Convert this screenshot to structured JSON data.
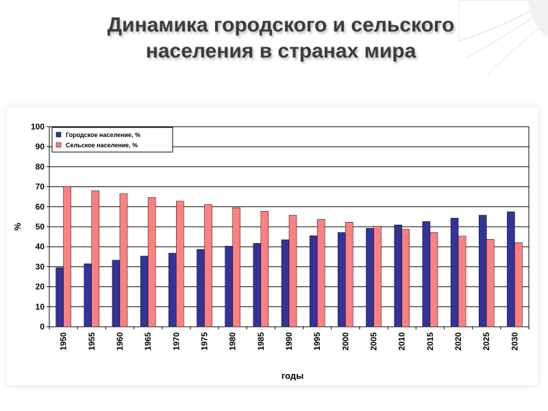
{
  "slide": {
    "title_line1": "Динамика городского и сельского",
    "title_line2": "населения в странах мира"
  },
  "chart_data": {
    "type": "bar",
    "xlabel": "годы",
    "ylabel": "%",
    "ylim": [
      0,
      100
    ],
    "yticks": [
      0,
      10,
      20,
      30,
      40,
      50,
      60,
      70,
      80,
      90,
      100
    ],
    "grid": true,
    "legend_position": "top-left",
    "categories": [
      "1950",
      "1955",
      "1960",
      "1965",
      "1970",
      "1975",
      "1980",
      "1985",
      "1990",
      "1995",
      "2000",
      "2005",
      "2010",
      "2015",
      "2020",
      "2025",
      "2030"
    ],
    "series": [
      {
        "name": "Городское население, %",
        "color": "#333399",
        "values": [
          29.5,
          31.5,
          33.3,
          35.3,
          36.8,
          38.7,
          40.3,
          41.7,
          43.5,
          45.5,
          47.1,
          49.2,
          50.9,
          52.6,
          54.3,
          55.8,
          57.5
        ]
      },
      {
        "name": "Сельское население, %",
        "color": "#ff8080",
        "values": [
          70.1,
          68.0,
          66.5,
          64.6,
          62.8,
          61.1,
          59.5,
          57.8,
          55.8,
          53.7,
          52.3,
          50.3,
          48.7,
          47.1,
          45.3,
          43.7,
          42.0
        ]
      }
    ]
  }
}
